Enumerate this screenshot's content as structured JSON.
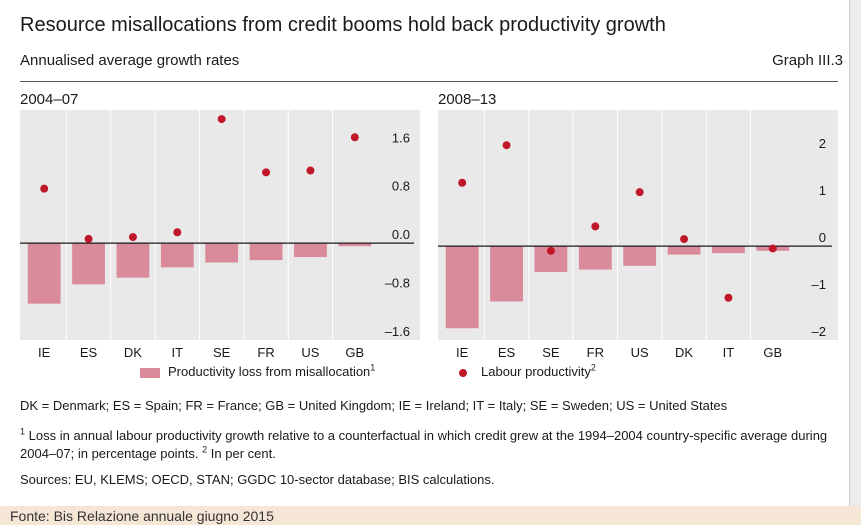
{
  "title": "Resource misallocations from credit booms hold back productivity growth",
  "subtitle": "Annualised average growth rates",
  "graph_id": "Graph III.3",
  "legend": {
    "bars": "Productivity loss from misallocation",
    "bars_note": "1",
    "dots": "Labour productivity",
    "dots_note": "2"
  },
  "colors": {
    "bars": "#d98b9c",
    "dots": "#c0172a",
    "panel_bg": "#e9e9e9"
  },
  "abbreviations": "DK = Denmark; ES = Spain; FR = France; GB = United Kingdom; IE = Ireland; IT = Italy; SE = Sweden; US = United States",
  "footnote_1": "Loss in annual labour productivity growth relative to a counterfactual in which credit grew at the 1994–2004 country-specific average during 2004–07; in percentage points.",
  "footnote_2": "In per cent.",
  "sources": "Sources: EU, KLEMS; OECD, STAN; GGDC 10-sector database; BIS calculations.",
  "source_line": "Fonte: Bis Relazione annuale giugno 2015",
  "chart_data": [
    {
      "type": "bar",
      "panel_title": "2004–07",
      "categories": [
        "IE",
        "ES",
        "DK",
        "IT",
        "SE",
        "FR",
        "US",
        "GB"
      ],
      "series": [
        {
          "name": "Productivity loss from misallocation",
          "kind": "bar",
          "values": [
            -1.0,
            -0.68,
            -0.57,
            -0.4,
            -0.32,
            -0.28,
            -0.23,
            -0.05
          ]
        },
        {
          "name": "Labour productivity",
          "kind": "dot",
          "values": [
            0.9,
            0.07,
            0.1,
            0.18,
            2.05,
            1.17,
            1.2,
            1.75
          ]
        }
      ],
      "ylim": [
        -1.6,
        2.2
      ],
      "yticks": [
        1.6,
        0.8,
        0.0,
        -0.8,
        -1.6
      ],
      "ytick_labels": [
        "1.6",
        "0.8",
        "0.0",
        "–0.8",
        "–1.6"
      ],
      "ylabel_position": "right",
      "grid": true
    },
    {
      "type": "bar",
      "panel_title": "2008–13",
      "categories": [
        "IE",
        "ES",
        "SE",
        "FR",
        "US",
        "DK",
        "IT",
        "GB"
      ],
      "series": [
        {
          "name": "Productivity loss from misallocation",
          "kind": "bar",
          "values": [
            -1.75,
            -1.18,
            -0.55,
            -0.5,
            -0.42,
            -0.18,
            -0.15,
            -0.1
          ]
        },
        {
          "name": "Labour productivity",
          "kind": "dot",
          "values": [
            1.35,
            2.15,
            -0.1,
            0.42,
            1.15,
            0.15,
            -1.1,
            -0.05
          ]
        }
      ],
      "ylim": [
        -2.0,
        2.9
      ],
      "yticks": [
        2,
        1,
        0,
        -1,
        -2
      ],
      "ytick_labels": [
        "2",
        "1",
        "0",
        "–1",
        "–2"
      ],
      "ylabel_position": "right",
      "grid": true
    }
  ]
}
